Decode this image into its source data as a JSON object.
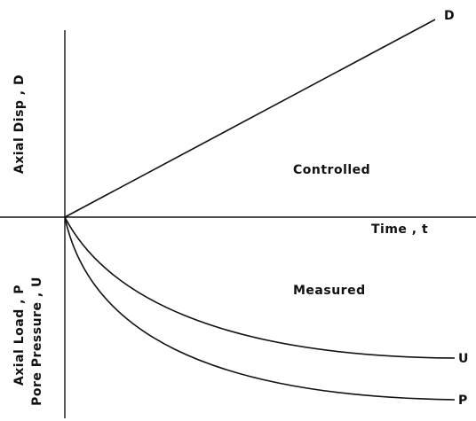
{
  "diagram": {
    "curve_labels": {
      "displacement": "D",
      "pore_pressure": "U",
      "load": "P"
    },
    "regions": {
      "upper": "Controlled",
      "lower": "Measured"
    },
    "x_axis_label": "Time , t",
    "y_axis_upper_label": "Axial Disp , D",
    "y_axis_lower_label_1": "Axial Load ,  P",
    "y_axis_lower_label_2": "Pore Pressure , U"
  }
}
